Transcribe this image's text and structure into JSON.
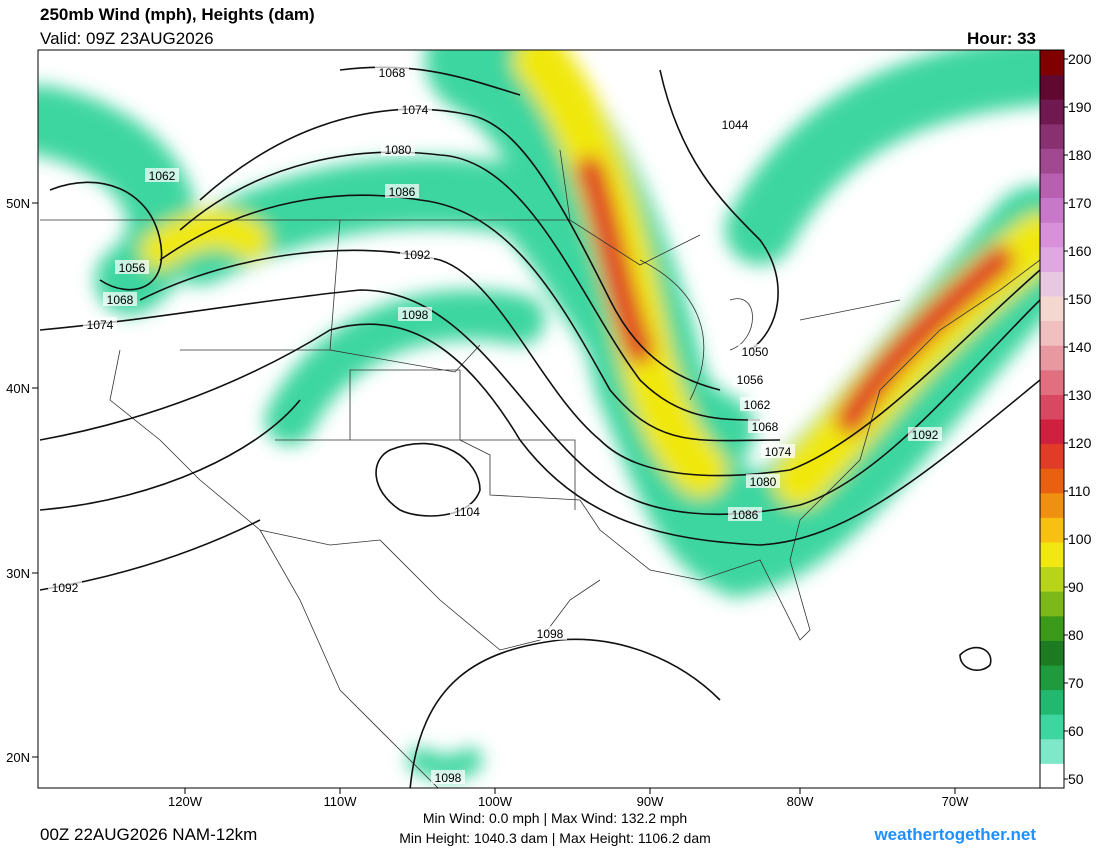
{
  "header": {
    "title": "250mb Wind (mph), Heights (dam)",
    "valid": "Valid: 09Z 23AUG2026",
    "hour": "Hour: 33"
  },
  "footer": {
    "run": "00Z 22AUG2026 NAM-12km",
    "wind_stats": "Min Wind:   0.0 mph | Max Wind: 132.2 mph",
    "height_stats": "Min Height: 1040.3 dam | Max Height: 1106.2 dam",
    "site": "weathertogether.net"
  },
  "lat_labels": [
    "50N",
    "40N",
    "30N",
    "20N"
  ],
  "lon_labels": [
    "120W",
    "110W",
    "100W",
    "90W",
    "80W",
    "70W"
  ],
  "contour_labels": [
    1068,
    1074,
    1080,
    1086,
    1092,
    1098,
    1104,
    1062,
    1056,
    1068,
    1074,
    1044,
    1050,
    1056,
    1062,
    1068,
    1074,
    1080,
    1086,
    1092,
    1092,
    1098,
    1098
  ],
  "colorbar": {
    "ticks": [
      50,
      60,
      70,
      80,
      90,
      100,
      110,
      120,
      130,
      140,
      150,
      160,
      170,
      180,
      190,
      200
    ],
    "colors": [
      "#ffffff",
      "#7fe8c8",
      "#3dd6a0",
      "#22b870",
      "#1f9a3c",
      "#1c7a20",
      "#3c9a1a",
      "#7cb81a",
      "#b8d41a",
      "#f0e810",
      "#f8c010",
      "#f09010",
      "#e86010",
      "#e03c28",
      "#d02040",
      "#d84860",
      "#e07080",
      "#e898a0",
      "#f0c0c0",
      "#f4d8d0",
      "#e8c8e0",
      "#e0a8e0",
      "#d890d8",
      "#c878c8",
      "#b860b0",
      "#a04890",
      "#883070",
      "#701850",
      "#600830",
      "#800000"
    ]
  }
}
